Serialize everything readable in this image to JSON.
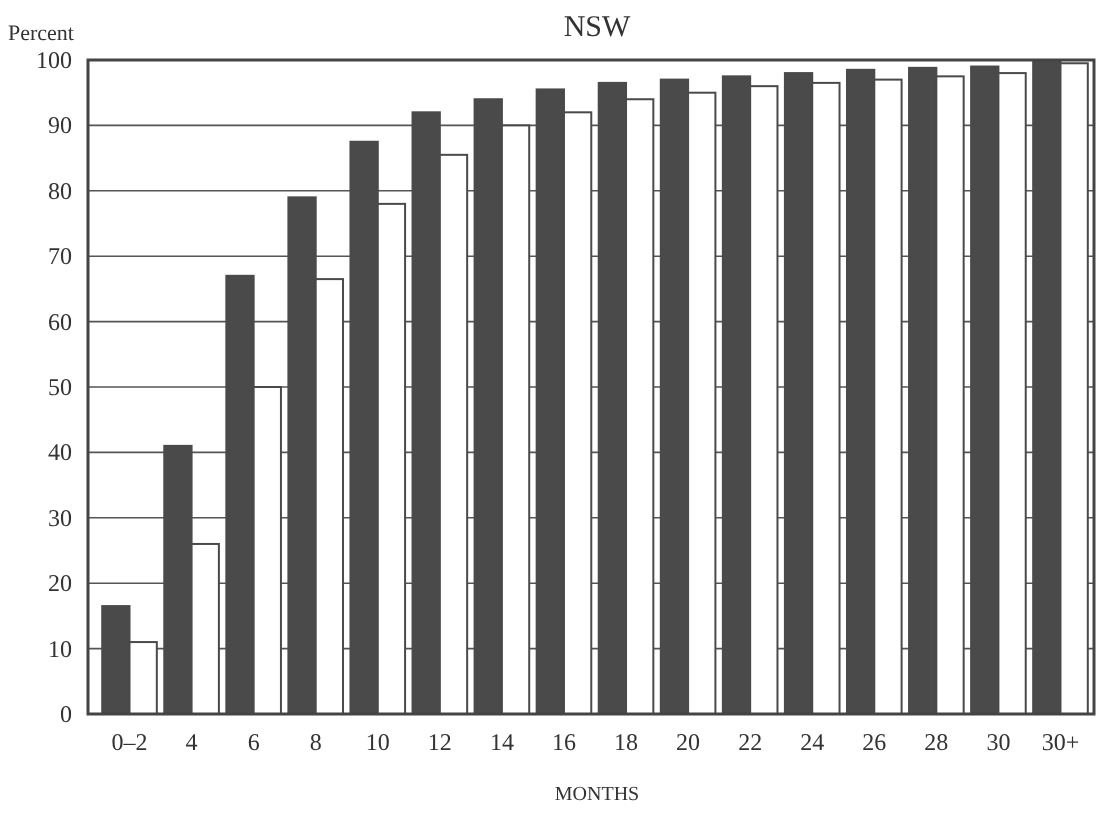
{
  "chart_data": {
    "type": "bar",
    "title": "NSW",
    "ylabel": "Percent",
    "xlabel": "MONTHS",
    "categories": [
      "0–2",
      "4",
      "6",
      "8",
      "10",
      "12",
      "14",
      "16",
      "18",
      "20",
      "22",
      "24",
      "26",
      "28",
      "30",
      "30+"
    ],
    "series": [
      {
        "color": "#4a4a4a",
        "values": [
          16.5,
          41,
          67,
          79,
          87.5,
          92,
          94,
          95.5,
          96.5,
          97,
          97.5,
          98,
          98.5,
          98.8,
          99,
          100
        ]
      },
      {
        "color": "#ffffff",
        "values": [
          11,
          26,
          50,
          66.5,
          78,
          85.5,
          90,
          92,
          94,
          95,
          96,
          96.5,
          97,
          97.5,
          98,
          99.5
        ]
      }
    ],
    "ylim": [
      0,
      100
    ],
    "yticks": [
      0,
      10,
      20,
      30,
      40,
      50,
      60,
      70,
      80,
      90,
      100
    ],
    "grid": "y"
  }
}
